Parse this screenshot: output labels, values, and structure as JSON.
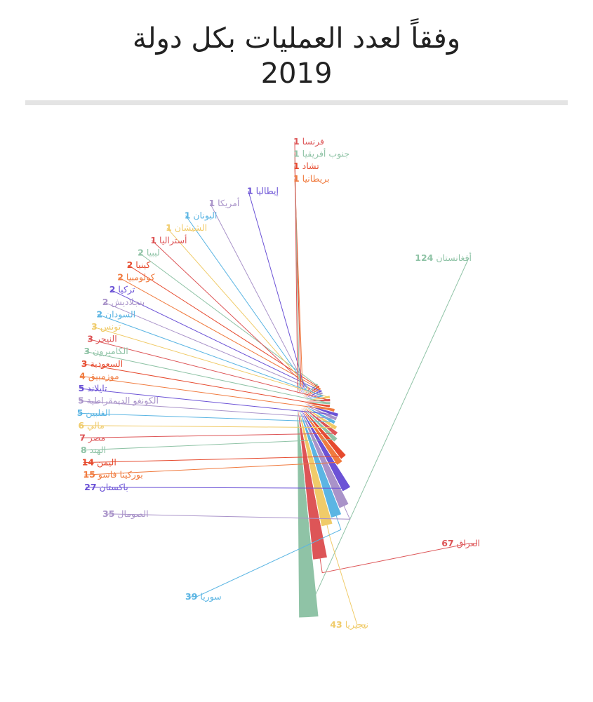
{
  "title": {
    "line1": "وفقاً لعدد العمليات بكل دولة",
    "line2": "2019"
  },
  "chart_data": {
    "type": "pie",
    "variant": "polar-area (nightingale rose), half circle",
    "title": "وفقاً لعدد العمليات بكل دولة 2019",
    "legend": "none (labels on slices)",
    "slices": [
      {
        "label": "أفغانستان",
        "value": 124,
        "color": "#8fc3a6"
      },
      {
        "label": "العراق",
        "value": 67,
        "color": "#dd5557"
      },
      {
        "label": "نيجيريا",
        "value": 43,
        "color": "#f0cb69"
      },
      {
        "label": "سوريا",
        "value": 39,
        "color": "#5bb5e3"
      },
      {
        "label": "الصومال",
        "value": 35,
        "color": "#a993c9"
      },
      {
        "label": "باكستان",
        "value": 27,
        "color": "#6b52d6"
      },
      {
        "label": "بوركينا فاسو",
        "value": 15,
        "color": "#f07b3f"
      },
      {
        "label": "اليمن",
        "value": 14,
        "color": "#e64a2e"
      },
      {
        "label": "الهند",
        "value": 8,
        "color": "#8fc3a6"
      },
      {
        "label": "مصر",
        "value": 7,
        "color": "#dd5557"
      },
      {
        "label": "مالي",
        "value": 6,
        "color": "#f0cb69"
      },
      {
        "label": "الفلبين",
        "value": 5,
        "color": "#5bb5e3"
      },
      {
        "label": "الكونغو الديمقراطية",
        "value": 5,
        "color": "#a993c9"
      },
      {
        "label": "تايلاند",
        "value": 5,
        "color": "#6b52d6"
      },
      {
        "label": "موزمبيق",
        "value": 4,
        "color": "#f07b3f"
      },
      {
        "label": "السعودية",
        "value": 3,
        "color": "#e64a2e"
      },
      {
        "label": "الكاميرون",
        "value": 3,
        "color": "#8fc3a6"
      },
      {
        "label": "النيجر",
        "value": 3,
        "color": "#dd5557"
      },
      {
        "label": "تونس",
        "value": 3,
        "color": "#f0cb69"
      },
      {
        "label": "السودان",
        "value": 2,
        "color": "#5bb5e3"
      },
      {
        "label": "بنجلاديش",
        "value": 2,
        "color": "#a993c9"
      },
      {
        "label": "تركيا",
        "value": 2,
        "color": "#6b52d6"
      },
      {
        "label": "كولومبيا",
        "value": 2,
        "color": "#f07b3f"
      },
      {
        "label": "كينيا",
        "value": 2,
        "color": "#e64a2e"
      },
      {
        "label": "ليبيا",
        "value": 2,
        "color": "#8fc3a6"
      },
      {
        "label": "أستراليا",
        "value": 1,
        "color": "#dd5557"
      },
      {
        "label": "الشيشان",
        "value": 1,
        "color": "#f0cb69"
      },
      {
        "label": "اليونان",
        "value": 1,
        "color": "#5bb5e3"
      },
      {
        "label": "أمريكا",
        "value": 1,
        "color": "#a993c9"
      },
      {
        "label": "إيطاليا",
        "value": 1,
        "color": "#6b52d6"
      },
      {
        "label": "بريطانيا",
        "value": 1,
        "color": "#f07b3f"
      },
      {
        "label": "تشاد",
        "value": 1,
        "color": "#e64a2e"
      },
      {
        "label": "جنوب أفريقيا",
        "value": 1,
        "color": "#8fc3a6"
      },
      {
        "label": "فرنسا",
        "value": 1,
        "color": "#dd5557"
      }
    ]
  }
}
